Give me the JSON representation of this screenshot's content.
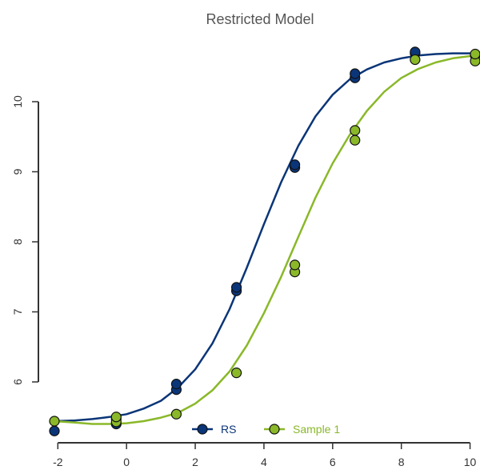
{
  "chart_data": {
    "type": "scatter",
    "title": "Restricted Model",
    "xlabel": "",
    "ylabel": "",
    "xlim": [
      -2.3,
      10.2
    ],
    "ylim": [
      5.1,
      10.9
    ],
    "x_ticks": [
      -2,
      0,
      2,
      4,
      6,
      8,
      10
    ],
    "y_ticks": [
      6,
      7,
      8,
      9,
      10
    ],
    "x_tick_labels": [
      "-2",
      "0",
      "2",
      "4",
      "6",
      "8",
      "10"
    ],
    "y_tick_labels": [
      "6",
      "7",
      "8",
      "9",
      "10"
    ],
    "grid": false,
    "legend_position": "bottom-center",
    "series": [
      {
        "name": "RS",
        "color": "#0a3578",
        "points": [
          [
            -2.1,
            5.3
          ],
          [
            -0.3,
            5.4
          ],
          [
            -0.3,
            5.47
          ],
          [
            1.45,
            5.89
          ],
          [
            1.45,
            5.97
          ],
          [
            3.2,
            7.3
          ],
          [
            3.2,
            7.35
          ],
          [
            4.9,
            9.06
          ],
          [
            4.9,
            9.1
          ],
          [
            6.65,
            10.34
          ],
          [
            6.65,
            10.4
          ],
          [
            8.4,
            10.69
          ],
          [
            8.4,
            10.71
          ],
          [
            10.15,
            10.66
          ]
        ],
        "curve": [
          [
            -2.1,
            5.44
          ],
          [
            -1.5,
            5.45
          ],
          [
            -1.0,
            5.47
          ],
          [
            -0.5,
            5.5
          ],
          [
            0,
            5.54
          ],
          [
            0.5,
            5.62
          ],
          [
            1.0,
            5.73
          ],
          [
            1.5,
            5.92
          ],
          [
            2.0,
            6.18
          ],
          [
            2.5,
            6.55
          ],
          [
            3.0,
            7.04
          ],
          [
            3.5,
            7.63
          ],
          [
            4.0,
            8.25
          ],
          [
            4.5,
            8.85
          ],
          [
            5.0,
            9.37
          ],
          [
            5.5,
            9.79
          ],
          [
            6.0,
            10.1
          ],
          [
            6.5,
            10.32
          ],
          [
            7.0,
            10.46
          ],
          [
            7.5,
            10.56
          ],
          [
            8.0,
            10.62
          ],
          [
            8.5,
            10.66
          ],
          [
            9.0,
            10.68
          ],
          [
            9.5,
            10.69
          ],
          [
            10.15,
            10.69
          ]
        ]
      },
      {
        "name": "Sample 1",
        "color": "#8ab829",
        "points": [
          [
            -2.1,
            5.44
          ],
          [
            -0.3,
            5.43
          ],
          [
            -0.3,
            5.5
          ],
          [
            1.45,
            5.54
          ],
          [
            3.2,
            6.13
          ],
          [
            4.9,
            7.57
          ],
          [
            4.9,
            7.67
          ],
          [
            6.65,
            9.45
          ],
          [
            6.65,
            9.59
          ],
          [
            8.4,
            10.6
          ],
          [
            10.15,
            10.58
          ],
          [
            10.15,
            10.68
          ]
        ],
        "curve": [
          [
            -2.1,
            5.44
          ],
          [
            -1.5,
            5.42
          ],
          [
            -1.0,
            5.4
          ],
          [
            -0.5,
            5.4
          ],
          [
            0,
            5.41
          ],
          [
            0.5,
            5.44
          ],
          [
            1.0,
            5.49
          ],
          [
            1.5,
            5.56
          ],
          [
            2.0,
            5.69
          ],
          [
            2.5,
            5.88
          ],
          [
            3.0,
            6.15
          ],
          [
            3.5,
            6.52
          ],
          [
            4.0,
            6.98
          ],
          [
            4.5,
            7.5
          ],
          [
            5.0,
            8.07
          ],
          [
            5.5,
            8.63
          ],
          [
            6.0,
            9.12
          ],
          [
            6.5,
            9.53
          ],
          [
            7.0,
            9.87
          ],
          [
            7.5,
            10.14
          ],
          [
            8.0,
            10.34
          ],
          [
            8.5,
            10.47
          ],
          [
            9.0,
            10.56
          ],
          [
            9.5,
            10.62
          ],
          [
            10.15,
            10.66
          ]
        ]
      }
    ]
  }
}
